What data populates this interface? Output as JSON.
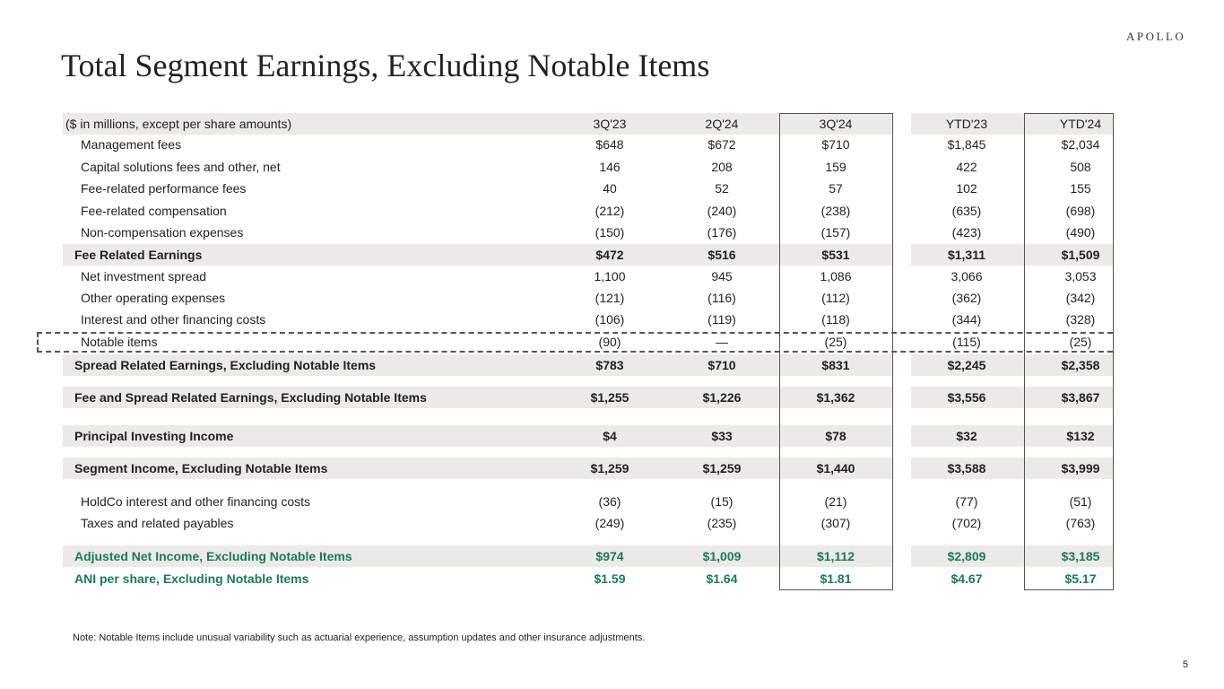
{
  "logo": "APOLLO",
  "title": "Total Segment Earnings, Excluding Notable Items",
  "header": {
    "label": "($ in millions, except per share amounts)",
    "cols": [
      "3Q'23",
      "2Q'24",
      "3Q'24",
      "YTD'23",
      "YTD'24"
    ]
  },
  "rows": [
    {
      "label": "Management fees",
      "values": [
        "$648",
        "$672",
        "$710",
        "$1,845",
        "$2,034"
      ],
      "kind": "item"
    },
    {
      "label": "Capital solutions fees and other, net",
      "values": [
        "146",
        "208",
        "159",
        "422",
        "508"
      ],
      "kind": "item"
    },
    {
      "label": "Fee-related performance fees",
      "values": [
        "40",
        "52",
        "57",
        "102",
        "155"
      ],
      "kind": "item"
    },
    {
      "label": "Fee-related compensation",
      "values": [
        "(212)",
        "(240)",
        "(238)",
        "(635)",
        "(698)"
      ],
      "kind": "item"
    },
    {
      "label": "Non-compensation expenses",
      "values": [
        "(150)",
        "(176)",
        "(157)",
        "(423)",
        "(490)"
      ],
      "kind": "item"
    },
    {
      "label": "Fee Related Earnings",
      "values": [
        "$472",
        "$516",
        "$531",
        "$1,311",
        "$1,509"
      ],
      "kind": "subtotal"
    },
    {
      "label": "Net investment spread",
      "values": [
        "1,100",
        "945",
        "1,086",
        "3,066",
        "3,053"
      ],
      "kind": "item"
    },
    {
      "label": "Other operating expenses",
      "values": [
        "(121)",
        "(116)",
        "(112)",
        "(362)",
        "(342)"
      ],
      "kind": "item"
    },
    {
      "label": "Interest and other financing costs",
      "values": [
        "(106)",
        "(119)",
        "(118)",
        "(344)",
        "(328)"
      ],
      "kind": "item"
    },
    {
      "label": "Notable items",
      "values": [
        "(90)",
        "—",
        "(25)",
        "(115)",
        "(25)"
      ],
      "kind": "item"
    },
    {
      "label": "Spread Related Earnings, Excluding Notable Items",
      "values": [
        "$783",
        "$710",
        "$831",
        "$2,245",
        "$2,358"
      ],
      "kind": "subtotal"
    },
    {
      "label": "Fee and Spread Related Earnings, Excluding Notable Items",
      "values": [
        "$1,255",
        "$1,226",
        "$1,362",
        "$3,556",
        "$3,867"
      ],
      "kind": "subtotal"
    },
    {
      "label": "Principal Investing Income",
      "values": [
        "$4",
        "$33",
        "$78",
        "$32",
        "$132"
      ],
      "kind": "subtotal"
    },
    {
      "label": "Segment Income, Excluding Notable Items",
      "values": [
        "$1,259",
        "$1,259",
        "$1,440",
        "$3,588",
        "$3,999"
      ],
      "kind": "subtotal"
    },
    {
      "label": "HoldCo interest and other financing costs",
      "values": [
        "(36)",
        "(15)",
        "(21)",
        "(77)",
        "(51)"
      ],
      "kind": "item"
    },
    {
      "label": "Taxes and related payables",
      "values": [
        "(249)",
        "(235)",
        "(307)",
        "(702)",
        "(763)"
      ],
      "kind": "item"
    },
    {
      "label": "Adjusted Net Income, Excluding Notable Items",
      "values": [
        "$974",
        "$1,009",
        "$1,112",
        "$2,809",
        "$3,185"
      ],
      "kind": "total"
    },
    {
      "label": "ANI per share, Excluding Notable Items",
      "values": [
        "$1.59",
        "$1.64",
        "$1.81",
        "$4.67",
        "$5.17"
      ],
      "kind": "total-plain"
    }
  ],
  "highlight_color": "#1b7a58",
  "note": "Note: Notable Items include unusual variability such as actuarial experience, assumption updates and other insurance adjustments.",
  "page_number": "5"
}
